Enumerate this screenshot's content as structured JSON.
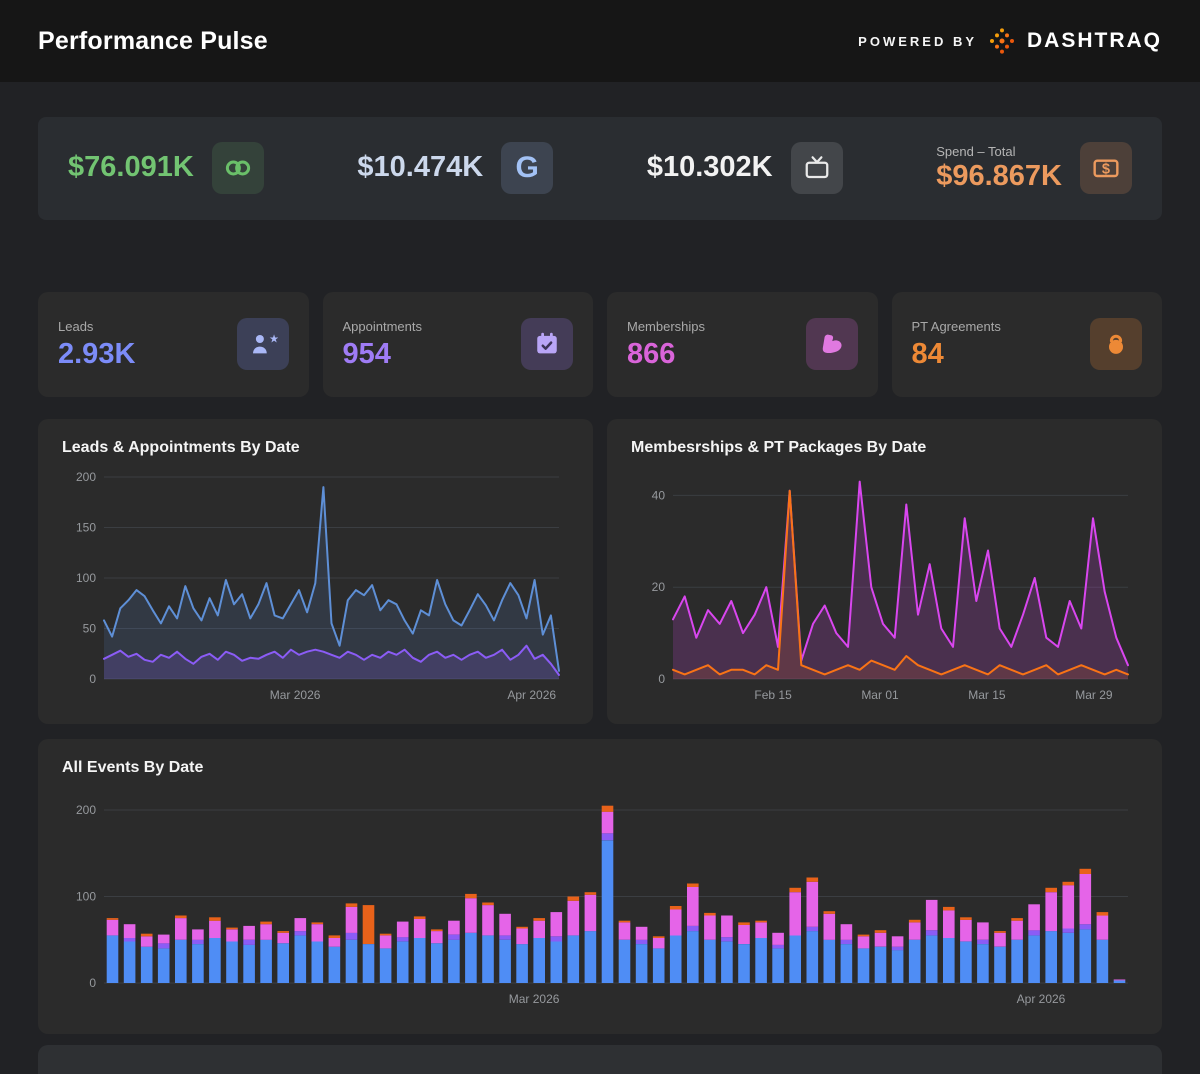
{
  "header": {
    "title": "Performance Pulse",
    "powered_by": "POWERED BY",
    "brand": "DASHTRAQ"
  },
  "spend": {
    "items": [
      {
        "value": "$76.091K",
        "color": "#72c472",
        "icon": "meta-icon"
      },
      {
        "value": "$10.474K",
        "color": "#ccd8ec",
        "icon": "google-icon"
      },
      {
        "value": "$10.302K",
        "color": "#f2f2f2",
        "icon": "tv-icon"
      },
      {
        "label": "Spend – Total",
        "value": "$96.867K",
        "color": "#ec9a5e",
        "icon": "money-icon"
      }
    ]
  },
  "kpis": [
    {
      "label": "Leads",
      "value": "2.93K",
      "color": "#7c8cf8",
      "icon": "person-star-icon"
    },
    {
      "label": "Appointments",
      "value": "954",
      "color": "#9f7cf5",
      "icon": "calendar-check-icon"
    },
    {
      "label": "Memberships",
      "value": "866",
      "color": "#d964d9",
      "icon": "biceps-icon"
    },
    {
      "label": "PT Agreements",
      "value": "84",
      "color": "#ed8936",
      "icon": "kettlebell-icon"
    }
  ],
  "chart_data": [
    {
      "type": "line",
      "title": "Leads & Appointments By Date",
      "ylim": [
        0,
        200
      ],
      "yticks": [
        0,
        50,
        100,
        150,
        200
      ],
      "xticks": [
        {
          "label": "Mar 2026",
          "pos": 0.42
        },
        {
          "label": "Apr 2026",
          "pos": 0.94
        }
      ],
      "series": [
        {
          "name": "Leads",
          "color": "#5e8fd6",
          "fill_opacity": 0.15,
          "values": [
            58,
            42,
            70,
            78,
            88,
            82,
            68,
            55,
            72,
            60,
            92,
            70,
            58,
            80,
            63,
            98,
            74,
            84,
            60,
            74,
            95,
            63,
            60,
            74,
            88,
            66,
            95,
            190,
            55,
            33,
            78,
            88,
            83,
            93,
            68,
            78,
            74,
            58,
            45,
            68,
            63,
            98,
            74,
            58,
            53,
            68,
            84,
            73,
            58,
            78,
            95,
            83,
            60,
            98,
            44,
            63,
            8
          ]
        },
        {
          "name": "Appointments",
          "color": "#8b5cf6",
          "fill_opacity": 0.18,
          "values": [
            20,
            24,
            28,
            22,
            25,
            19,
            17,
            24,
            21,
            27,
            20,
            15,
            22,
            25,
            19,
            27,
            24,
            18,
            21,
            20,
            24,
            27,
            21,
            29,
            24,
            27,
            29,
            27,
            24,
            21,
            27,
            24,
            19,
            24,
            21,
            27,
            24,
            29,
            21,
            17,
            24,
            27,
            21,
            24,
            19,
            24,
            27,
            21,
            24,
            29,
            19,
            24,
            33,
            20,
            24,
            15,
            4
          ]
        }
      ]
    },
    {
      "type": "line",
      "title": "Membesrships & PT Packages By Date",
      "ylim": [
        0,
        44
      ],
      "yticks": [
        0,
        20,
        40
      ],
      "xticks": [
        {
          "label": "Feb 15",
          "pos": 0.22
        },
        {
          "label": "Mar 01",
          "pos": 0.455
        },
        {
          "label": "Mar 15",
          "pos": 0.69
        },
        {
          "label": "Mar 29",
          "pos": 0.925
        }
      ],
      "series": [
        {
          "name": "Memberships",
          "color": "#d946ef",
          "fill_opacity": 0.18,
          "values": [
            13,
            18,
            9,
            15,
            12,
            17,
            10,
            14,
            20,
            7,
            41,
            4,
            12,
            16,
            10,
            7,
            43,
            20,
            12,
            9,
            38,
            14,
            25,
            11,
            7,
            35,
            17,
            28,
            11,
            7,
            14,
            22,
            9,
            7,
            17,
            11,
            35,
            19,
            9,
            3
          ]
        },
        {
          "name": "PT Packages",
          "color": "#f97316",
          "fill_opacity": 0.12,
          "values": [
            2,
            1,
            2,
            3,
            1,
            2,
            2,
            1,
            3,
            2,
            41,
            3,
            2,
            1,
            2,
            3,
            2,
            4,
            3,
            2,
            5,
            3,
            2,
            1,
            2,
            3,
            2,
            1,
            3,
            2,
            1,
            2,
            3,
            1,
            2,
            3,
            2,
            1,
            2,
            1
          ]
        }
      ]
    },
    {
      "type": "bar",
      "title": "All Events By Date",
      "ylim": [
        0,
        215
      ],
      "yticks": [
        0,
        100,
        200
      ],
      "xticks": [
        {
          "label": "Mar 2026",
          "pos": 0.42
        },
        {
          "label": "Apr 2026",
          "pos": 0.915
        }
      ],
      "stack_names": [
        "Leads",
        "Appointments",
        "Memberships",
        "PT"
      ],
      "colors": [
        "#4f8df5",
        "#8b5cf6",
        "#e564e8",
        "#e8621a"
      ],
      "bars": [
        [
          55,
          0,
          18,
          2
        ],
        [
          48,
          4,
          16,
          0
        ],
        [
          42,
          0,
          12,
          3
        ],
        [
          40,
          6,
          10,
          0
        ],
        [
          50,
          0,
          25,
          3
        ],
        [
          45,
          5,
          12,
          0
        ],
        [
          52,
          0,
          20,
          4
        ],
        [
          48,
          0,
          14,
          2
        ],
        [
          44,
          6,
          16,
          0
        ],
        [
          50,
          0,
          18,
          3
        ],
        [
          46,
          0,
          12,
          2
        ],
        [
          55,
          5,
          15,
          0
        ],
        [
          48,
          0,
          20,
          2
        ],
        [
          42,
          0,
          10,
          3
        ],
        [
          50,
          8,
          30,
          4
        ],
        [
          45,
          0,
          0,
          45
        ],
        [
          40,
          0,
          15,
          2
        ],
        [
          48,
          5,
          18,
          0
        ],
        [
          52,
          0,
          22,
          3
        ],
        [
          46,
          0,
          14,
          2
        ],
        [
          50,
          6,
          16,
          0
        ],
        [
          58,
          0,
          40,
          5
        ],
        [
          55,
          0,
          35,
          3
        ],
        [
          50,
          5,
          25,
          0
        ],
        [
          45,
          0,
          18,
          2
        ],
        [
          52,
          0,
          20,
          3
        ],
        [
          48,
          6,
          28,
          0
        ],
        [
          55,
          0,
          40,
          5
        ],
        [
          60,
          0,
          42,
          3
        ],
        [
          165,
          8,
          25,
          7
        ],
        [
          50,
          0,
          20,
          2
        ],
        [
          45,
          5,
          15,
          0
        ],
        [
          40,
          0,
          12,
          2
        ],
        [
          55,
          0,
          30,
          4
        ],
        [
          60,
          6,
          45,
          4
        ],
        [
          50,
          0,
          28,
          3
        ],
        [
          48,
          5,
          25,
          0
        ],
        [
          45,
          0,
          22,
          3
        ],
        [
          52,
          0,
          18,
          2
        ],
        [
          40,
          4,
          14,
          0
        ],
        [
          55,
          0,
          50,
          5
        ],
        [
          60,
          5,
          52,
          5
        ],
        [
          50,
          0,
          30,
          3
        ],
        [
          45,
          5,
          18,
          0
        ],
        [
          40,
          0,
          14,
          2
        ],
        [
          42,
          0,
          16,
          3
        ],
        [
          38,
          4,
          12,
          0
        ],
        [
          50,
          0,
          20,
          3
        ],
        [
          55,
          6,
          35,
          0
        ],
        [
          52,
          0,
          32,
          4
        ],
        [
          48,
          0,
          25,
          3
        ],
        [
          45,
          5,
          20,
          0
        ],
        [
          42,
          0,
          16,
          2
        ],
        [
          50,
          0,
          22,
          3
        ],
        [
          55,
          6,
          30,
          0
        ],
        [
          60,
          0,
          45,
          5
        ],
        [
          58,
          5,
          50,
          4
        ],
        [
          62,
          6,
          58,
          6
        ],
        [
          50,
          0,
          28,
          4
        ],
        [
          3,
          0,
          1,
          0
        ]
      ]
    }
  ]
}
